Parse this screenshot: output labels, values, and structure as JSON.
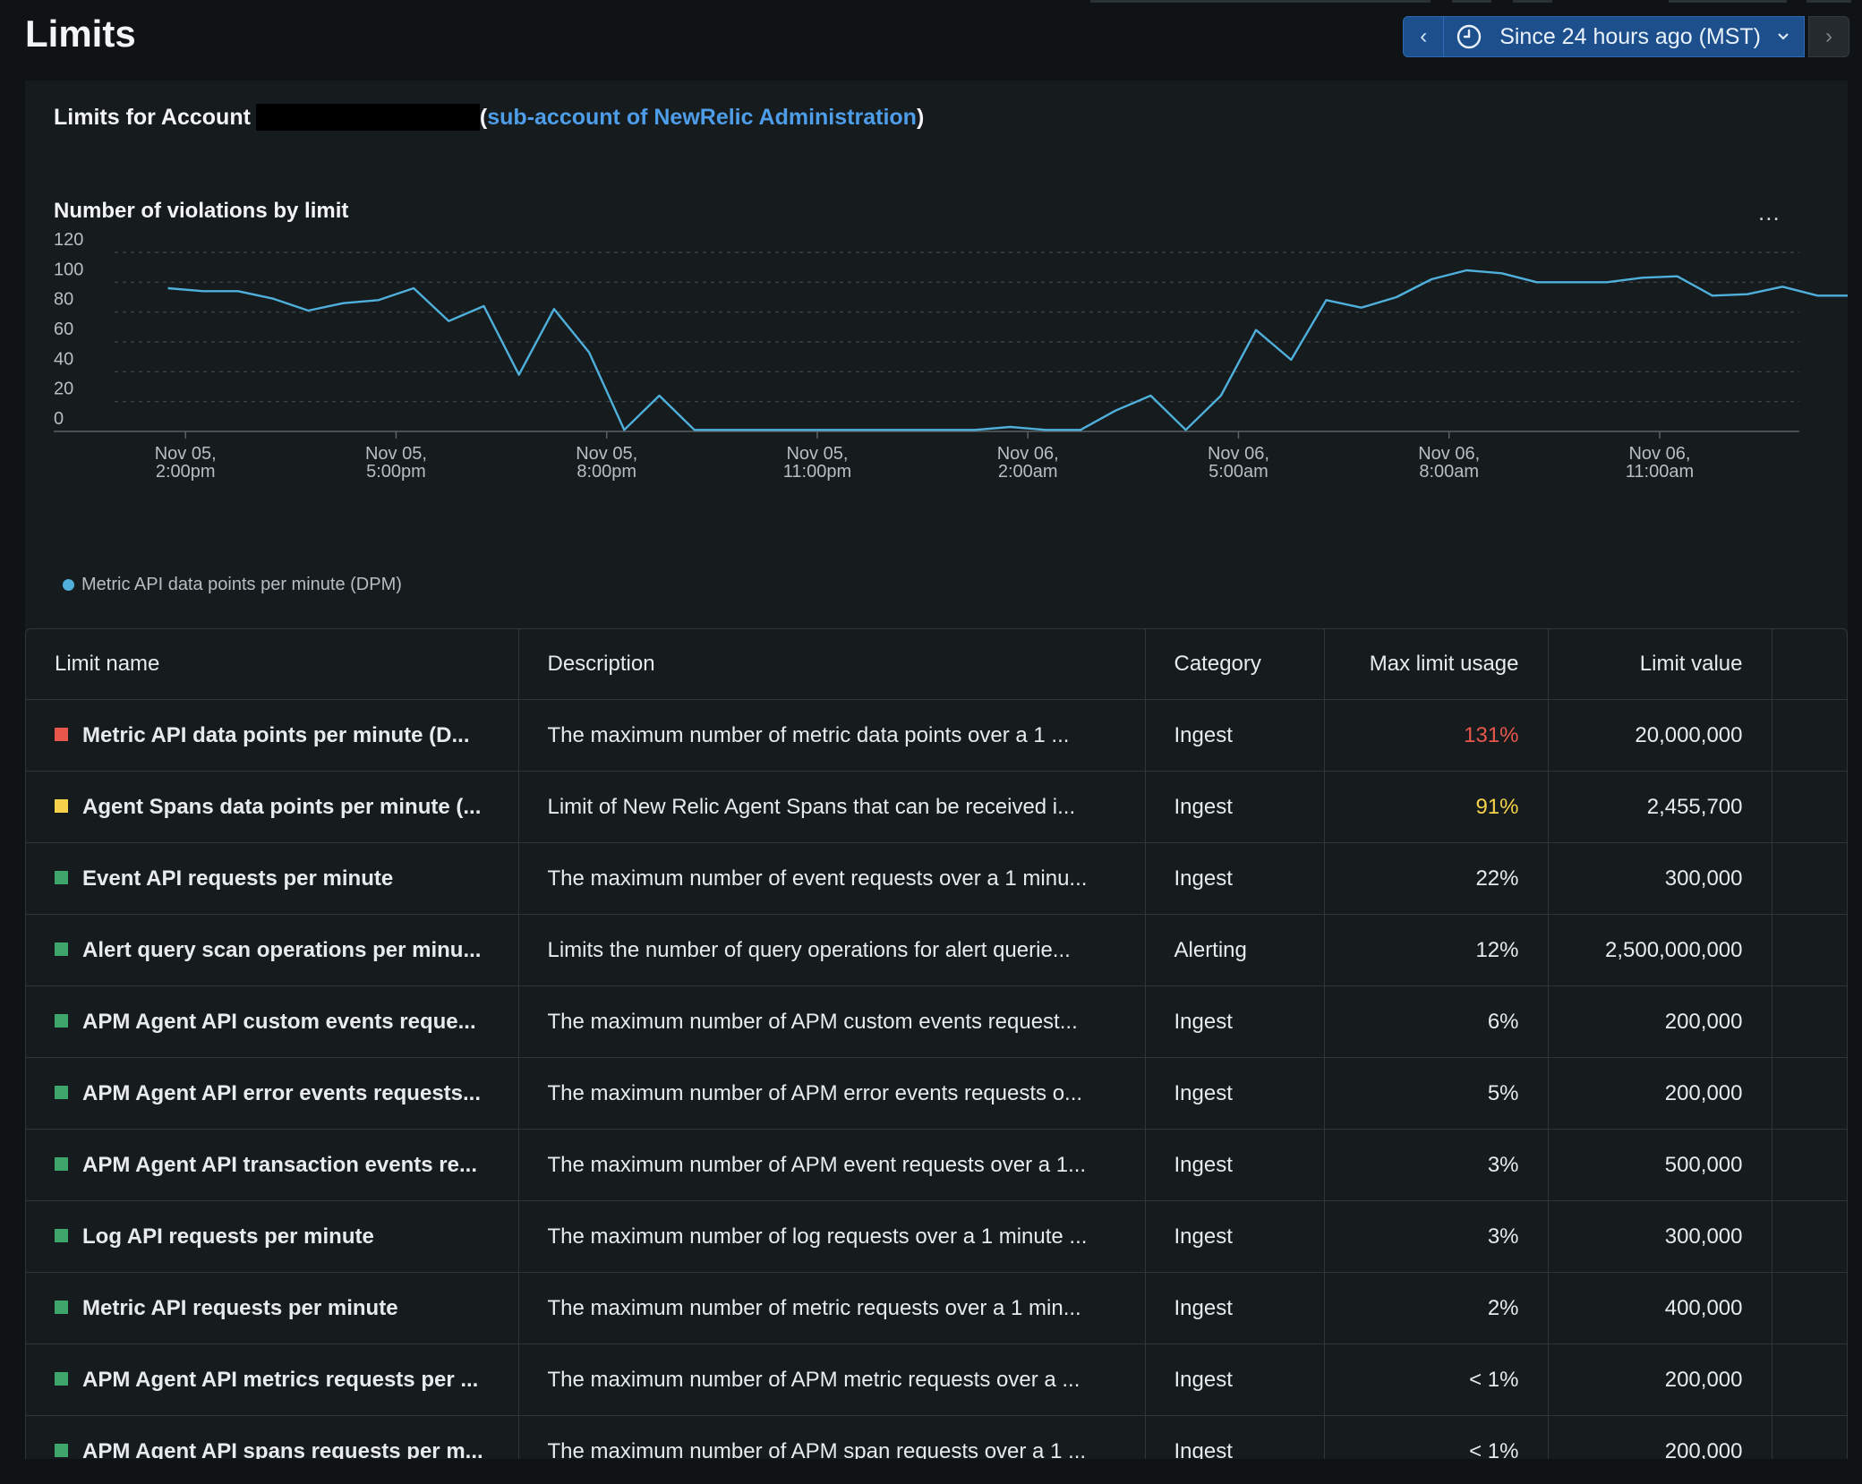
{
  "header": {
    "title": "Limits"
  },
  "timepicker": {
    "prev_label": "‹",
    "label": "Since 24 hours ago (MST)",
    "next_label": "›"
  },
  "account": {
    "prefix": "Limits for Account",
    "open_paren": "(",
    "link_text": "sub-account of NewRelic Administration",
    "close_paren": ")"
  },
  "chart": {
    "title": "Number of violations by limit",
    "menu_label": "...",
    "legend": "Metric API data points per minute (DPM)"
  },
  "colors": {
    "accent": "#4d9de8",
    "series": "#4fb0dc",
    "red": "#e8574b",
    "yellow": "#f5d24a",
    "green": "#3fa66b"
  },
  "chart_data": {
    "type": "line",
    "title": "Number of violations by limit",
    "ylim": [
      0,
      120
    ],
    "yticks": [
      "120",
      "100",
      "80",
      "60",
      "40",
      "20",
      "0"
    ],
    "xtick_labels": [
      [
        "Nov 05,",
        "2:00pm"
      ],
      [
        "Nov 05,",
        "5:00pm"
      ],
      [
        "Nov 05,",
        "8:00pm"
      ],
      [
        "Nov 05,",
        "11:00pm"
      ],
      [
        "Nov 06,",
        "2:00am"
      ],
      [
        "Nov 06,",
        "5:00am"
      ],
      [
        "Nov 06,",
        "8:00am"
      ],
      [
        "Nov 06,",
        "11:00am"
      ]
    ],
    "xtick_hours": [
      0,
      3,
      6,
      9,
      12,
      15,
      18,
      21
    ],
    "grid": "dashed horizontal",
    "legend_position": "bottom-left",
    "series": [
      {
        "name": "Metric API data points per minute (DPM)",
        "x_hours": [
          -0.25,
          0.25,
          0.75,
          1.25,
          1.75,
          2.25,
          2.75,
          3.25,
          3.75,
          4.25,
          4.75,
          5.25,
          5.75,
          6.25,
          6.75,
          7.25,
          7.75,
          8.25,
          8.75,
          9.25,
          9.75,
          10.25,
          10.75,
          11.25,
          11.75,
          12.25,
          12.75,
          13.25,
          13.75,
          14.25,
          14.75,
          15.25,
          15.75,
          16.25,
          16.75,
          17.25,
          17.75,
          18.25,
          18.75,
          19.25,
          19.75,
          20.25,
          20.75,
          21.25,
          21.75,
          22.25,
          22.75,
          23.25,
          23.75
        ],
        "values": [
          96,
          94,
          94,
          89,
          81,
          86,
          88,
          96,
          74,
          84,
          38,
          82,
          53,
          1,
          24,
          1,
          1,
          1,
          1,
          1,
          1,
          1,
          1,
          1,
          3,
          1,
          1,
          14,
          24,
          1,
          24,
          68,
          48,
          88,
          83,
          90,
          102,
          108,
          106,
          100,
          100,
          100,
          103,
          104,
          91,
          92,
          97,
          91,
          91
        ]
      }
    ]
  },
  "table": {
    "headers": [
      "Limit name",
      "Description",
      "Category",
      "Max limit usage",
      "Limit value"
    ],
    "rows": [
      {
        "status": "red",
        "name": "Metric API data points per minute (D...",
        "description": "The maximum number of metric data points over a 1 ...",
        "category": "Ingest",
        "usage": "131%",
        "usage_color": "red",
        "value": "20,000,000"
      },
      {
        "status": "yellow",
        "name": "Agent Spans data points per minute (...",
        "description": "Limit of New Relic Agent Spans that can be received i...",
        "category": "Ingest",
        "usage": "91%",
        "usage_color": "yellow",
        "value": "2,455,700"
      },
      {
        "status": "green",
        "name": "Event API requests per minute",
        "description": "The maximum number of event requests over a 1 minu...",
        "category": "Ingest",
        "usage": "22%",
        "usage_color": "normal",
        "value": "300,000"
      },
      {
        "status": "green",
        "name": "Alert query scan operations per minu...",
        "description": "Limits the number of query operations for alert querie...",
        "category": "Alerting",
        "usage": "12%",
        "usage_color": "normal",
        "value": "2,500,000,000"
      },
      {
        "status": "green",
        "name": "APM Agent API custom events reque...",
        "description": "The maximum number of APM custom events request...",
        "category": "Ingest",
        "usage": "6%",
        "usage_color": "normal",
        "value": "200,000"
      },
      {
        "status": "green",
        "name": "APM Agent API error events requests...",
        "description": "The maximum number of APM error events requests o...",
        "category": "Ingest",
        "usage": "5%",
        "usage_color": "normal",
        "value": "200,000"
      },
      {
        "status": "green",
        "name": "APM Agent API transaction events re...",
        "description": "The maximum number of APM event requests over a 1...",
        "category": "Ingest",
        "usage": "3%",
        "usage_color": "normal",
        "value": "500,000"
      },
      {
        "status": "green",
        "name": "Log API requests per minute",
        "description": "The maximum number of log requests over a 1 minute ...",
        "category": "Ingest",
        "usage": "3%",
        "usage_color": "normal",
        "value": "300,000"
      },
      {
        "status": "green",
        "name": "Metric API requests per minute",
        "description": "The maximum number of metric requests over a 1 min...",
        "category": "Ingest",
        "usage": "2%",
        "usage_color": "normal",
        "value": "400,000"
      },
      {
        "status": "green",
        "name": "APM Agent API metrics requests per ...",
        "description": "The maximum number of APM metric requests over a ...",
        "category": "Ingest",
        "usage": "< 1%",
        "usage_color": "normal",
        "value": "200,000"
      },
      {
        "status": "green",
        "name": "APM Agent API spans requests per m...",
        "description": "The maximum number of APM span requests over a 1 ...",
        "category": "Ingest",
        "usage": "< 1%",
        "usage_color": "normal",
        "value": "200,000"
      }
    ]
  }
}
